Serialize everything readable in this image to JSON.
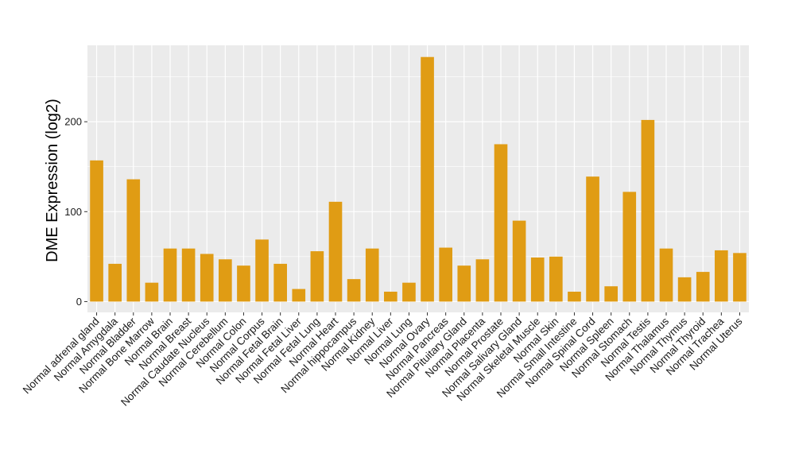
{
  "chart_data": {
    "type": "bar",
    "title": "",
    "xlabel": "",
    "ylabel": "DME Expression (log2)",
    "ylim": [
      -12,
      285
    ],
    "yticks": [
      0,
      100,
      200
    ],
    "grid": true,
    "legend": "none",
    "bar_color": "#E09C14",
    "panel_color": "#EBEBEB",
    "grid_color": "#FFFFFF",
    "categories": [
      "Normal adrenal gland",
      "Normal Amygdala",
      "Normal Bladder",
      "Normal Bone Marrow",
      "Normal Brain",
      "Normal Breast",
      "Normal Caudate Nucleus",
      "Normal Cerebellum",
      "Normal Colon",
      "Normal Corpus",
      "Normal Fetal Brain",
      "Normal Fetal Liver",
      "Normal Fetal Lung",
      "Normal Heart",
      "Normal hippocampus",
      "Normal Kidney",
      "Normal Liver",
      "Normal Lung",
      "Normal Ovary",
      "Normal Pancreas",
      "Normal Pituitary Gland",
      "Normal Placenta",
      "Normal Prostate",
      "Normal Salivary Gland",
      "Normal Skeletal Muscle",
      "Normal Skin",
      "Normal Small Intestine",
      "Normal Spinal Cord",
      "Normal Spleen",
      "Normal Stomach",
      "Normal Testis",
      "Normal Thalamus",
      "Normal Thymus",
      "Normal Thyroid",
      "Normal Trachea",
      "Normal Uterus"
    ],
    "values": [
      157,
      42,
      136,
      21,
      59,
      59,
      53,
      47,
      40,
      69,
      42,
      14,
      56,
      111,
      25,
      59,
      11,
      21,
      272,
      60,
      40,
      47,
      175,
      90,
      49,
      50,
      11,
      139,
      17,
      122,
      202,
      59,
      27,
      33,
      57,
      54
    ]
  }
}
